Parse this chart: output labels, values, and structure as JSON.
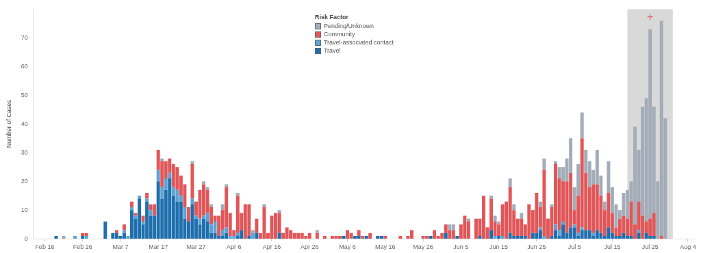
{
  "chart_data": {
    "type": "bar",
    "stacked": true,
    "ylabel": "Number of Cases",
    "legend_title": "Risk Factor",
    "legend": "top",
    "x": [
      "--02-19",
      "--02-20",
      "--02-21",
      "--02-22",
      "--02-23",
      "--02-24",
      "--02-25",
      "--02-26",
      "--02-27",
      "--02-28",
      "--02-29",
      "--03-01",
      "--03-02",
      "--03-03",
      "--03-04",
      "--03-05",
      "--03-06",
      "--03-07",
      "--03-08",
      "--03-09",
      "--03-10",
      "--03-11",
      "--03-12",
      "--03-13",
      "--03-14",
      "--03-15",
      "--03-16",
      "--03-17",
      "--03-18",
      "--03-19",
      "--03-20",
      "--03-21",
      "--03-22",
      "--03-23",
      "--03-24",
      "--03-25",
      "--03-26",
      "--03-27",
      "--03-28",
      "--03-29",
      "--03-30",
      "--03-31",
      "--04-01",
      "--04-02",
      "--04-03",
      "--04-04",
      "--04-05",
      "--04-06",
      "--04-07",
      "--04-08",
      "--04-09",
      "--04-10",
      "--04-11",
      "--04-12",
      "--04-13",
      "--04-14",
      "--04-15",
      "--04-16",
      "--04-17",
      "--04-18",
      "--04-19",
      "--04-20",
      "--04-21",
      "--04-22",
      "--04-23",
      "--04-24",
      "--04-25",
      "--04-26",
      "--04-27",
      "--04-28",
      "--04-29",
      "--04-30",
      "--05-01",
      "--05-02",
      "--05-03",
      "--05-04",
      "--05-05",
      "--05-06",
      "--05-07",
      "--05-08",
      "--05-09",
      "--05-10",
      "--05-11",
      "--05-12",
      "--05-13",
      "--05-14",
      "--05-15",
      "--05-16",
      "--05-17",
      "--05-18",
      "--05-19",
      "--05-20",
      "--05-21",
      "--05-22",
      "--05-23",
      "--05-24",
      "--05-25",
      "--05-26",
      "--05-27",
      "--05-28",
      "--05-29",
      "--05-30",
      "--05-31",
      "--06-01",
      "--06-02",
      "--06-03",
      "--06-04",
      "--06-05",
      "--06-06",
      "--06-07",
      "--06-08",
      "--06-09",
      "--06-10",
      "--06-11",
      "--06-12",
      "--06-13",
      "--06-14",
      "--06-15",
      "--06-16",
      "--06-17",
      "--06-18",
      "--06-19",
      "--06-20",
      "--06-21",
      "--06-22",
      "--06-23",
      "--06-24",
      "--06-25",
      "--06-26",
      "--06-27",
      "--06-28",
      "--06-29",
      "--06-30",
      "--07-01",
      "--07-02",
      "--07-03",
      "--07-04",
      "--07-05",
      "--07-06",
      "--07-07",
      "--07-08",
      "--07-09",
      "--07-10",
      "--07-11",
      "--07-12",
      "--07-13",
      "--07-14",
      "--07-15",
      "--07-16",
      "--07-17",
      "--07-18",
      "--07-19",
      "--07-20",
      "--07-21",
      "--07-22",
      "--07-23",
      "--07-24",
      "--07-25",
      "--07-26",
      "--07-27",
      "--07-28",
      "--07-29"
    ],
    "xlim": [
      "--02-13",
      "--08-06"
    ],
    "xticks": [
      {
        "value": "--02-16",
        "label": "Feb 16"
      },
      {
        "value": "--02-26",
        "label": "Feb 26"
      },
      {
        "value": "--03-07",
        "label": "Mar 7"
      },
      {
        "value": "--03-17",
        "label": "Mar 17"
      },
      {
        "value": "--03-27",
        "label": "Mar 27"
      },
      {
        "value": "--04-06",
        "label": "Apr 6"
      },
      {
        "value": "--04-16",
        "label": "Apr 16"
      },
      {
        "value": "--04-26",
        "label": "Apr 26"
      },
      {
        "value": "--05-06",
        "label": "May 6"
      },
      {
        "value": "--05-16",
        "label": "May 16"
      },
      {
        "value": "--05-26",
        "label": "May 26"
      },
      {
        "value": "--06-05",
        "label": "Jun 5"
      },
      {
        "value": "--06-15",
        "label": "Jun 15"
      },
      {
        "value": "--06-25",
        "label": "Jun 25"
      },
      {
        "value": "--07-05",
        "label": "Jul 5"
      },
      {
        "value": "--07-15",
        "label": "Jul 15"
      },
      {
        "value": "--07-25",
        "label": "Jul 25"
      },
      {
        "value": "--08-04",
        "label": "Aug 4"
      }
    ],
    "ylim": [
      0,
      80
    ],
    "yticks": [
      0,
      10,
      20,
      30,
      40,
      50,
      60,
      70
    ],
    "bands": [
      {
        "axis": "x",
        "from": "--07-19",
        "to": "--07-31",
        "label": "+",
        "color": "#d9d9d9"
      }
    ],
    "series": [
      {
        "name": "Travel",
        "color": "#1f6fad",
        "values": [
          1,
          null,
          null,
          null,
          null,
          null,
          null,
          1,
          null,
          null,
          null,
          null,
          null,
          6,
          null,
          2,
          2,
          1,
          2,
          null,
          10,
          7,
          14,
          5,
          13,
          8,
          8,
          20,
          14,
          17,
          21,
          15,
          13,
          13,
          7,
          6,
          12,
          7,
          5,
          7,
          6,
          2,
          2,
          1,
          1,
          2,
          null,
          null,
          1,
          3,
          null,
          1,
          null,
          2,
          null,
          null,
          null,
          null,
          null,
          2,
          null,
          null,
          null,
          null,
          null,
          null,
          null,
          null,
          null,
          null,
          null,
          null,
          null,
          null,
          null,
          null,
          1,
          null,
          null,
          1,
          1,
          null,
          1,
          null,
          null,
          1,
          1,
          null,
          null,
          null,
          null,
          null,
          null,
          null,
          null,
          null,
          null,
          null,
          null,
          1,
          null,
          null,
          null,
          2,
          null,
          null,
          1,
          null,
          null,
          null,
          null,
          null,
          1,
          null,
          null,
          3,
          null,
          1,
          null,
          null,
          2,
          1,
          1,
          1,
          1,
          null,
          2,
          2,
          3,
          null,
          null,
          1,
          3,
          1,
          5,
          2,
          4,
          4,
          1,
          3,
          3,
          3,
          1,
          3,
          2,
          1,
          4,
          2,
          1,
          1,
          2,
          1,
          1,
          null,
          2,
          null,
          2,
          1,
          1,
          null,
          null,
          null
        ]
      },
      {
        "name": "Travel-associated contact",
        "color": "#5ea3d4",
        "values": [
          null,
          null,
          null,
          null,
          null,
          1,
          null,
          null,
          1,
          null,
          null,
          null,
          null,
          null,
          null,
          null,
          null,
          null,
          1,
          1,
          1,
          1,
          1,
          1,
          1,
          2,
          null,
          4,
          4,
          4,
          2,
          3,
          4,
          2,
          4,
          null,
          2,
          1,
          2,
          1,
          3,
          3,
          4,
          null,
          2,
          2,
          1,
          1,
          1,
          null,
          null,
          null,
          2,
          null,
          null,
          null,
          null,
          null,
          null,
          null,
          null,
          null,
          null,
          null,
          null,
          null,
          null,
          null,
          null,
          null,
          null,
          null,
          null,
          null,
          null,
          null,
          null,
          null,
          null,
          null,
          null,
          null,
          null,
          null,
          null,
          null,
          null,
          null,
          null,
          null,
          null,
          null,
          null,
          null,
          null,
          null,
          null,
          null,
          null,
          null,
          null,
          null,
          null,
          null,
          null,
          null,
          null,
          null,
          null,
          null,
          null,
          null,
          null,
          null,
          null,
          null,
          1,
          null,
          1,
          null,
          null,
          null,
          null,
          null,
          null,
          null,
          null,
          null,
          1,
          1,
          null,
          null,
          2,
          2,
          1,
          null,
          null,
          1,
          1,
          1,
          null,
          null,
          1,
          null,
          null,
          null,
          null,
          null,
          null,
          null,
          null,
          null,
          null,
          null,
          1,
          null,
          null,
          null,
          null,
          null,
          null,
          null
        ]
      },
      {
        "name": "Community",
        "color": "#e15759",
        "values": [
          null,
          null,
          null,
          null,
          null,
          null,
          null,
          1,
          1,
          null,
          null,
          null,
          null,
          null,
          null,
          null,
          1,
          null,
          2,
          null,
          2,
          1,
          null,
          2,
          2,
          2,
          4,
          7,
          9,
          6,
          5,
          8,
          8,
          7,
          8,
          5,
          12,
          5,
          10,
          11,
          8,
          6,
          2,
          7,
          7,
          14,
          8,
          2,
          13,
          6,
          12,
          11,
          null,
          5,
          2,
          11,
          2,
          8,
          9,
          7,
          2,
          4,
          3,
          2,
          2,
          2,
          1,
          2,
          null,
          2,
          null,
          1,
          null,
          1,
          1,
          1,
          null,
          3,
          2,
          null,
          2,
          1,
          null,
          2,
          null,
          null,
          null,
          1,
          null,
          null,
          null,
          1,
          null,
          1,
          3,
          null,
          null,
          1,
          1,
          null,
          3,
          1,
          2,
          3,
          3,
          3,
          null,
          5,
          8,
          6,
          null,
          7,
          6,
          15,
          4,
          11,
          5,
          4,
          11,
          13,
          16,
          9,
          6,
          6,
          4,
          12,
          8,
          14,
          7,
          23,
          7,
          10,
          21,
          18,
          14,
          18,
          19,
          5,
          13,
          31,
          20,
          15,
          17,
          16,
          13,
          9,
          12,
          7,
          3,
          6,
          6,
          6,
          12,
          5,
          10,
          8,
          4,
          6,
          8,
          null,
          1,
          null
        ]
      },
      {
        "name": "Pending/Unknown",
        "color": "#a3acb9",
        "values": [
          null,
          null,
          1,
          null,
          null,
          null,
          null,
          null,
          null,
          null,
          null,
          null,
          null,
          null,
          null,
          null,
          null,
          null,
          null,
          null,
          null,
          null,
          null,
          null,
          null,
          null,
          null,
          null,
          1,
          null,
          null,
          null,
          null,
          null,
          null,
          null,
          1,
          null,
          null,
          1,
          1,
          1,
          null,
          null,
          2,
          1,
          null,
          null,
          1,
          null,
          null,
          null,
          1,
          null,
          null,
          1,
          null,
          null,
          null,
          1,
          null,
          null,
          null,
          null,
          null,
          null,
          null,
          null,
          null,
          1,
          null,
          null,
          null,
          null,
          null,
          null,
          null,
          null,
          null,
          null,
          null,
          null,
          null,
          null,
          null,
          null,
          null,
          null,
          null,
          null,
          null,
          null,
          null,
          null,
          null,
          null,
          null,
          null,
          null,
          null,
          null,
          null,
          null,
          null,
          2,
          2,
          null,
          null,
          null,
          1,
          null,
          null,
          null,
          null,
          null,
          1,
          2,
          1,
          null,
          null,
          3,
          2,
          null,
          2,
          null,
          null,
          null,
          null,
          2,
          4,
          null,
          1,
          1,
          4,
          5,
          8,
          12,
          8,
          11,
          9,
          8,
          9,
          5,
          12,
          7,
          3,
          11,
          9,
          8,
          3,
          8,
          10,
          7,
          34,
          18,
          38,
          43,
          66,
          37,
          20,
          75,
          42
        ]
      }
    ]
  }
}
